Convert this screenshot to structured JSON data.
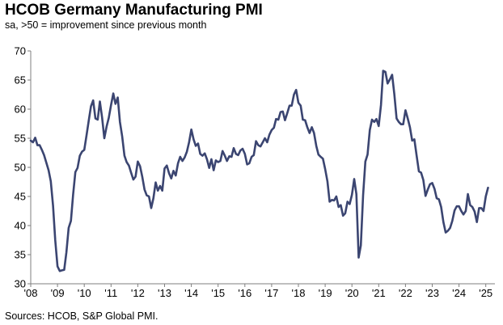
{
  "chart_data": {
    "type": "line",
    "title": "HCOB Germany Manufacturing PMI",
    "subtitle": "sa, >50 = improvement since previous month",
    "source": "Sources: HCOB, S&P Global PMI.",
    "xlabel": "",
    "ylabel": "",
    "ylim": [
      30,
      70
    ],
    "yticks": [
      30,
      35,
      40,
      45,
      50,
      55,
      60,
      65,
      70
    ],
    "xlim": [
      2008,
      2025.2
    ],
    "xticks": [
      {
        "value": 2008,
        "label": "'08"
      },
      {
        "value": 2009,
        "label": "'09"
      },
      {
        "value": 2010,
        "label": "'10"
      },
      {
        "value": 2011,
        "label": "'11"
      },
      {
        "value": 2012,
        "label": "'12"
      },
      {
        "value": 2013,
        "label": "'13"
      },
      {
        "value": 2014,
        "label": "'14"
      },
      {
        "value": 2015,
        "label": "'15"
      },
      {
        "value": 2016,
        "label": "'16"
      },
      {
        "value": 2017,
        "label": "'17"
      },
      {
        "value": 2018,
        "label": "'18"
      },
      {
        "value": 2019,
        "label": "'19"
      },
      {
        "value": 2020,
        "label": "'20"
      },
      {
        "value": 2021,
        "label": "'21"
      },
      {
        "value": 2022,
        "label": "'22"
      },
      {
        "value": 2023,
        "label": "'23"
      },
      {
        "value": 2024,
        "label": "'24"
      },
      {
        "value": 2025,
        "label": "'25"
      }
    ],
    "grid": false,
    "line_color": "#3b4571",
    "series": [
      {
        "start": "2008-01",
        "frequency": "monthly",
        "values": [
          54.6,
          54.3,
          55.1,
          53.8,
          53.8,
          53.0,
          52.1,
          50.8,
          49.5,
          47.6,
          43.4,
          37.5,
          33.0,
          32.2,
          32.3,
          32.4,
          35.4,
          39.6,
          40.8,
          45.3,
          49.2,
          49.9,
          52.0,
          52.7,
          53.0,
          55.5,
          58.0,
          60.5,
          61.5,
          58.4,
          58.2,
          61.3,
          58.5,
          55.0,
          57.0,
          58.5,
          60.7,
          62.7,
          60.9,
          62.0,
          57.8,
          55.3,
          52.0,
          50.9,
          50.3,
          49.1,
          47.9,
          48.4,
          51.0,
          50.2,
          48.4,
          46.2,
          45.2,
          45.0,
          43.0,
          44.7,
          47.4,
          46.0,
          46.8,
          46.0,
          49.8,
          50.3,
          49.0,
          48.1,
          49.4,
          48.6,
          50.7,
          51.8,
          51.1,
          51.7,
          52.7,
          54.3,
          56.5,
          54.8,
          53.7,
          54.1,
          52.3,
          52.0,
          52.4,
          51.4,
          49.9,
          51.4,
          49.5,
          51.2,
          50.9,
          51.1,
          52.8,
          52.0,
          51.1,
          51.9,
          51.8,
          53.3,
          52.3,
          52.1,
          52.9,
          53.2,
          52.3,
          50.5,
          50.7,
          51.8,
          52.1,
          54.5,
          53.8,
          53.6,
          54.3,
          55.0,
          54.3,
          55.6,
          56.4,
          56.8,
          58.3,
          58.2,
          59.5,
          59.6,
          58.1,
          59.3,
          60.6,
          60.6,
          62.5,
          63.3,
          61.1,
          60.6,
          58.2,
          58.1,
          56.9,
          55.9,
          56.9,
          55.9,
          53.7,
          52.2,
          51.8,
          51.5,
          49.7,
          47.6,
          44.1,
          44.4,
          44.3,
          45.0,
          43.2,
          43.5,
          41.7,
          42.1,
          44.1,
          43.7,
          45.3,
          48.0,
          45.4,
          34.5,
          36.6,
          45.2,
          51.0,
          52.2,
          56.4,
          58.2,
          57.8,
          58.3,
          57.1,
          60.7,
          66.6,
          66.4,
          64.4,
          65.1,
          65.9,
          62.6,
          58.4,
          57.8,
          57.4,
          57.4,
          59.8,
          58.4,
          56.9,
          54.6,
          54.8,
          52.0,
          49.3,
          49.1,
          47.8,
          45.1,
          46.2,
          47.1,
          47.3,
          46.3,
          44.7,
          44.5,
          43.2,
          40.6,
          38.8,
          39.1,
          39.6,
          40.8,
          42.6,
          43.3,
          43.3,
          42.5,
          41.9,
          42.5,
          45.4,
          43.5,
          43.2,
          42.4,
          40.6,
          43.0,
          43.0,
          42.5,
          45.0,
          46.5
        ]
      }
    ]
  }
}
